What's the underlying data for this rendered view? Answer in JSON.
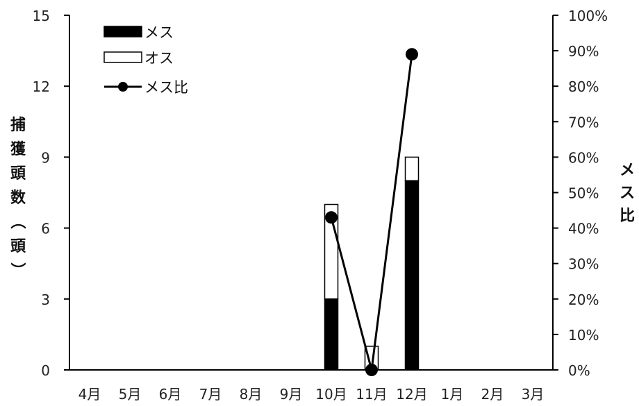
{
  "chart_data": {
    "type": "bar",
    "stacked": true,
    "categories": [
      "4月",
      "5月",
      "6月",
      "7月",
      "8月",
      "9月",
      "10月",
      "11月",
      "12月",
      "1月",
      "2月",
      "3月"
    ],
    "series": [
      {
        "name": "メス",
        "type": "bar",
        "axis": "left",
        "color": "#000000",
        "values": [
          0,
          0,
          0,
          0,
          0,
          0,
          3,
          0,
          8,
          0,
          0,
          0
        ]
      },
      {
        "name": "オス",
        "type": "bar",
        "axis": "left",
        "color": "#ffffff",
        "values": [
          0,
          0,
          0,
          0,
          0,
          0,
          4,
          1,
          1,
          0,
          0,
          0
        ]
      },
      {
        "name": "メス比",
        "type": "line",
        "axis": "right",
        "color": "#000000",
        "values": [
          null,
          null,
          null,
          null,
          null,
          null,
          0.43,
          0.0,
          0.89,
          null,
          null,
          null
        ]
      }
    ],
    "y_left": {
      "label": "捕獲頭数（頭）",
      "ylim": [
        0,
        15
      ],
      "ticks": [
        0,
        3,
        6,
        9,
        12,
        15
      ],
      "tick_labels": [
        "0",
        "3",
        "6",
        "9",
        "12",
        "15"
      ]
    },
    "y_right": {
      "label": "メス比",
      "ylim": [
        0,
        1
      ],
      "ticks": [
        0,
        0.1,
        0.2,
        0.3,
        0.4,
        0.5,
        0.6,
        0.7,
        0.8,
        0.9,
        1.0
      ],
      "tick_labels": [
        "0%",
        "10%",
        "20%",
        "30%",
        "40%",
        "50%",
        "60%",
        "70%",
        "80%",
        "90%",
        "100%"
      ]
    },
    "legend": {
      "position": "top-left",
      "items": [
        "メス",
        "オス",
        "メス比"
      ]
    },
    "grid": false
  }
}
